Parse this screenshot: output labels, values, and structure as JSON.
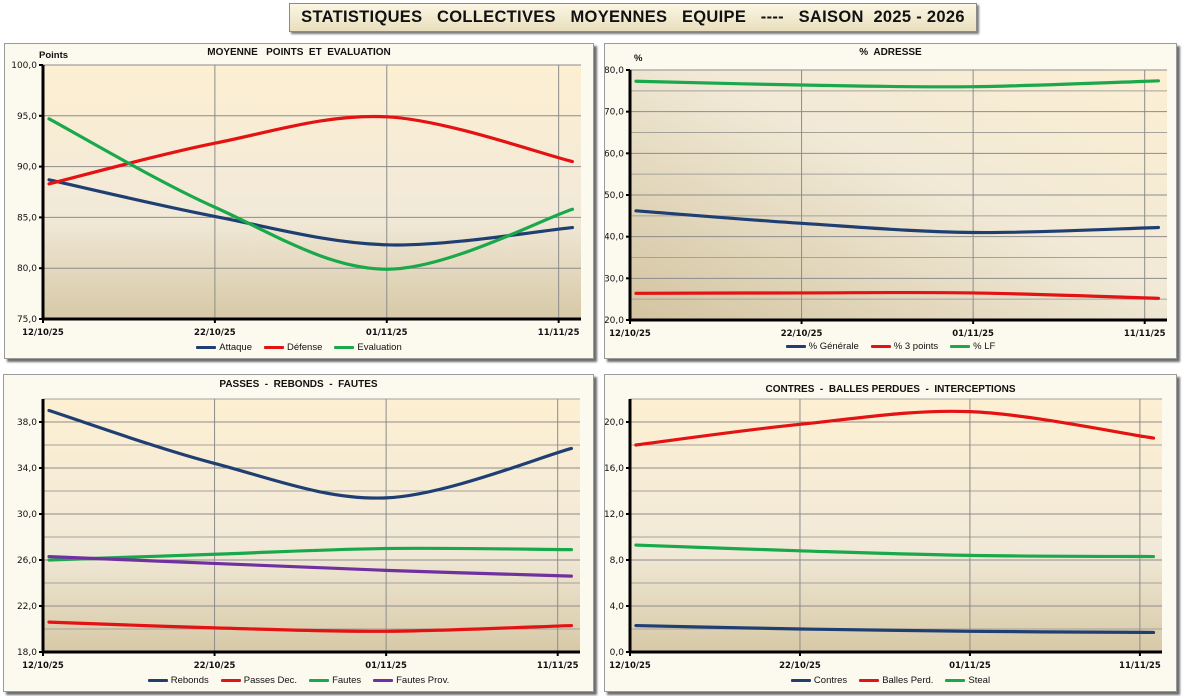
{
  "banner": {
    "title": "STATISTIQUES   COLLECTIVES   MOYENNES   EQUIPE   ----   SAISON  2025 - 2026"
  },
  "colors": {
    "blue": "#1f3f73",
    "red": "#e41212",
    "green": "#19a84a",
    "purple": "#7030a0"
  },
  "chart_data": [
    {
      "type": "line",
      "title": "MOYENNE   POINTS  ET  EVALUATION",
      "ylabel": "Points",
      "xlabel": "",
      "ylim": [
        75,
        100
      ],
      "yticks": [
        "75,0",
        "80,0",
        "85,0",
        "90,0",
        "95,0",
        "100,0"
      ],
      "ytick_values": [
        75,
        80,
        85,
        90,
        95,
        100
      ],
      "xticks": [
        "12/10/25",
        "22/10/25",
        "01/11/25",
        "11/11/25"
      ],
      "xtick_days": [
        0,
        10,
        20,
        30
      ],
      "xlim_days": [
        0,
        31.3
      ],
      "x_days": [
        0.35,
        10,
        20,
        30.8
      ],
      "grid": true,
      "legend_position": "bottom",
      "series": [
        {
          "name": "Attaque",
          "color": "#1f3f73",
          "values": [
            88.7,
            85.1,
            82.3,
            84.0
          ]
        },
        {
          "name": "Défense",
          "color": "#e41212",
          "values": [
            88.3,
            92.3,
            94.9,
            90.5
          ]
        },
        {
          "name": "Evaluation",
          "color": "#19a84a",
          "values": [
            94.7,
            86.0,
            79.9,
            85.8
          ]
        }
      ]
    },
    {
      "type": "line",
      "title": "%  ADRESSE",
      "ylabel": "%",
      "xlabel": "",
      "ylim": [
        20,
        80
      ],
      "yticks": [
        "20,0",
        "30,0",
        "40,0",
        "50,0",
        "60,0",
        "70,0",
        "80,0"
      ],
      "ytick_values": [
        20,
        30,
        40,
        50,
        60,
        70,
        80
      ],
      "minor_grid_step": 5,
      "xticks": [
        "12/10/25",
        "22/10/25",
        "01/11/25",
        "11/11/25"
      ],
      "xtick_days": [
        0,
        10,
        20,
        30
      ],
      "xlim_days": [
        0,
        31.3
      ],
      "x_days": [
        0.35,
        10,
        20,
        30.8
      ],
      "grid": true,
      "legend_position": "bottom",
      "series": [
        {
          "name": "% Générale",
          "color": "#1f3f73",
          "values": [
            46.2,
            43.2,
            41.0,
            42.2
          ]
        },
        {
          "name": "% 3 points",
          "color": "#e41212",
          "values": [
            26.4,
            26.5,
            26.5,
            25.2
          ]
        },
        {
          "name": "% LF",
          "color": "#19a84a",
          "values": [
            77.3,
            76.4,
            76.0,
            77.4
          ]
        }
      ]
    },
    {
      "type": "line",
      "title": "PASSES  -  REBONDS  -  FAUTES",
      "ylabel": "",
      "xlabel": "",
      "ylim": [
        18,
        40
      ],
      "yticks": [
        "18,0",
        "22,0",
        "26,0",
        "30,0",
        "34,0",
        "38,0"
      ],
      "ytick_values": [
        18,
        22,
        26,
        30,
        34,
        38
      ],
      "minor_grid_step": 2,
      "xticks": [
        "12/10/25",
        "22/10/25",
        "01/11/25",
        "11/11/25"
      ],
      "xtick_days": [
        0,
        10,
        20,
        30
      ],
      "xlim_days": [
        0,
        31.3
      ],
      "x_days": [
        0.35,
        10,
        20,
        30.8
      ],
      "grid": true,
      "legend_position": "bottom",
      "series": [
        {
          "name": "Rebonds",
          "color": "#1f3f73",
          "values": [
            39.0,
            34.4,
            31.4,
            35.7
          ]
        },
        {
          "name": "Passes Dec.",
          "color": "#e41212",
          "values": [
            20.6,
            20.1,
            19.8,
            20.3
          ]
        },
        {
          "name": "Fautes",
          "color": "#19a84a",
          "values": [
            26.0,
            26.5,
            27.0,
            26.9
          ]
        },
        {
          "name": "Fautes Prov.",
          "color": "#7030a0",
          "values": [
            26.3,
            25.7,
            25.1,
            24.6
          ]
        }
      ]
    },
    {
      "type": "line",
      "title": "CONTRES  -  BALLES PERDUES  -  INTERCEPTIONS",
      "ylabel": "",
      "xlabel": "",
      "ylim": [
        0,
        22
      ],
      "yticks": [
        "0,0",
        "4,0",
        "8,0",
        "12,0",
        "16,0",
        "20,0"
      ],
      "ytick_values": [
        0,
        4,
        8,
        12,
        16,
        20
      ],
      "minor_grid_step": 2,
      "xticks": [
        "12/10/25",
        "22/10/25",
        "01/11/25",
        "11/11/25"
      ],
      "xtick_days": [
        0,
        10,
        20,
        30
      ],
      "xlim_days": [
        0,
        31.3
      ],
      "x_days": [
        0.35,
        10,
        20,
        30.8
      ],
      "grid": true,
      "legend_position": "bottom",
      "series": [
        {
          "name": "Contres",
          "color": "#1f3f73",
          "values": [
            2.3,
            2.0,
            1.8,
            1.7
          ]
        },
        {
          "name": "Balles Perd.",
          "color": "#e41212",
          "values": [
            18.0,
            19.8,
            20.9,
            18.6
          ]
        },
        {
          "name": "Steal",
          "color": "#19a84a",
          "values": [
            9.3,
            8.8,
            8.4,
            8.3
          ]
        }
      ]
    }
  ]
}
